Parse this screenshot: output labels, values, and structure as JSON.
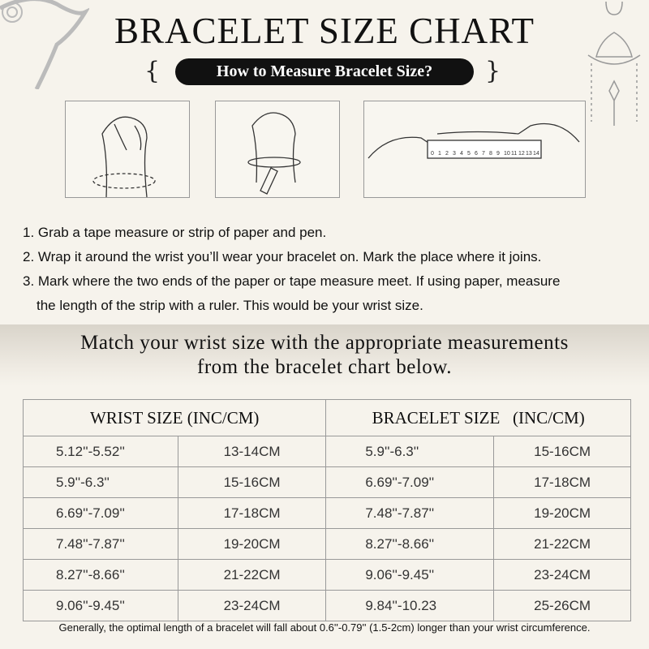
{
  "title": "BRACELET SIZE CHART",
  "subtitle": "How to Measure Bracelet Size?",
  "ruler_labels": [
    "0",
    "1",
    "2",
    "3",
    "4",
    "5",
    "6",
    "7",
    "8",
    "9",
    "10",
    "11",
    "12",
    "13",
    "14"
  ],
  "steps": [
    "1. Grab a tape measure or strip of paper and pen.",
    "2. Wrap it around the wrist you’ll wear your bracelet on. Mark the place where it joins.",
    "3. Mark where the two ends of the paper or tape measure meet. If using paper, measure",
    "the length of the strip with a ruler. This would be your wrist size."
  ],
  "band": {
    "line1": "Match your wrist size with the appropriate measurements",
    "line2": "from the bracelet chart below."
  },
  "table": {
    "headers": [
      "WRIST SIZE (INC/CM)",
      "BRACELET SIZE   (INC/CM)"
    ],
    "rows": [
      [
        "5.12''-5.52''",
        "13-14CM",
        "5.9''-6.3''",
        "15-16CM"
      ],
      [
        "5.9''-6.3''",
        "15-16CM",
        "6.69''-7.09''",
        "17-18CM"
      ],
      [
        "6.69''-7.09''",
        "17-18CM",
        "7.48''-7.87''",
        "19-20CM"
      ],
      [
        "7.48''-7.87''",
        "19-20CM",
        "8.27''-8.66''",
        "21-22CM"
      ],
      [
        "8.27''-8.66''",
        "21-22CM",
        "9.06''-9.45''",
        "23-24CM"
      ],
      [
        "9.06''-9.45''",
        "23-24CM",
        "9.84''-10.23",
        "25-26CM"
      ]
    ]
  },
  "footer": "Generally, the optimal length of a bracelet will fall about 0.6''-0.79'' (1.5-2cm) longer than your wrist circumference."
}
